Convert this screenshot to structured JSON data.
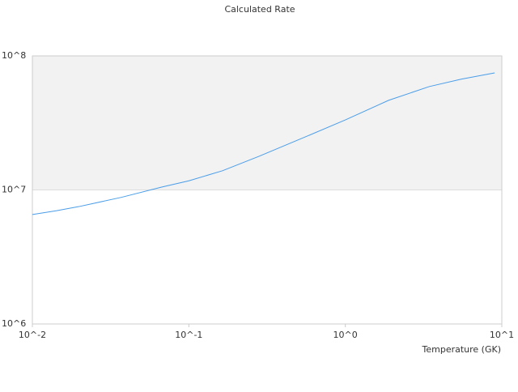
{
  "chart_data": {
    "type": "line",
    "title": "Calculated Rate",
    "x_label": "Temperature (GK)",
    "log_x": true,
    "log_y": true,
    "xlim": [
      0.01,
      10
    ],
    "ylim": [
      1000000,
      100000000
    ],
    "xticks": [
      {
        "value": 0.01,
        "label": "10^-2"
      },
      {
        "value": 0.1,
        "label": "10^-1"
      },
      {
        "value": 1,
        "label": "10^0"
      },
      {
        "value": 10,
        "label": "10^1"
      }
    ],
    "yticks": [
      {
        "value": 1000000,
        "label": "10^6"
      },
      {
        "value": 10000000,
        "label": "10^7"
      },
      {
        "value": 100000000,
        "label": "10^8"
      }
    ],
    "band_color": "#f2f2f2",
    "x": [
      0.01,
      0.0143,
      0.0197,
      0.037,
      0.067,
      0.1,
      0.164,
      0.28,
      0.57,
      1,
      1.89,
      3.43,
      5.5,
      9.0
    ],
    "series": [
      {
        "color": "#4a9de8",
        "values": [
          6550000,
          7000000,
          7500000,
          8800000,
          10500000,
          11700000,
          13900000,
          17800000,
          25200000,
          33300000,
          46600000,
          59000000,
          67000000,
          74700000
        ]
      }
    ]
  }
}
